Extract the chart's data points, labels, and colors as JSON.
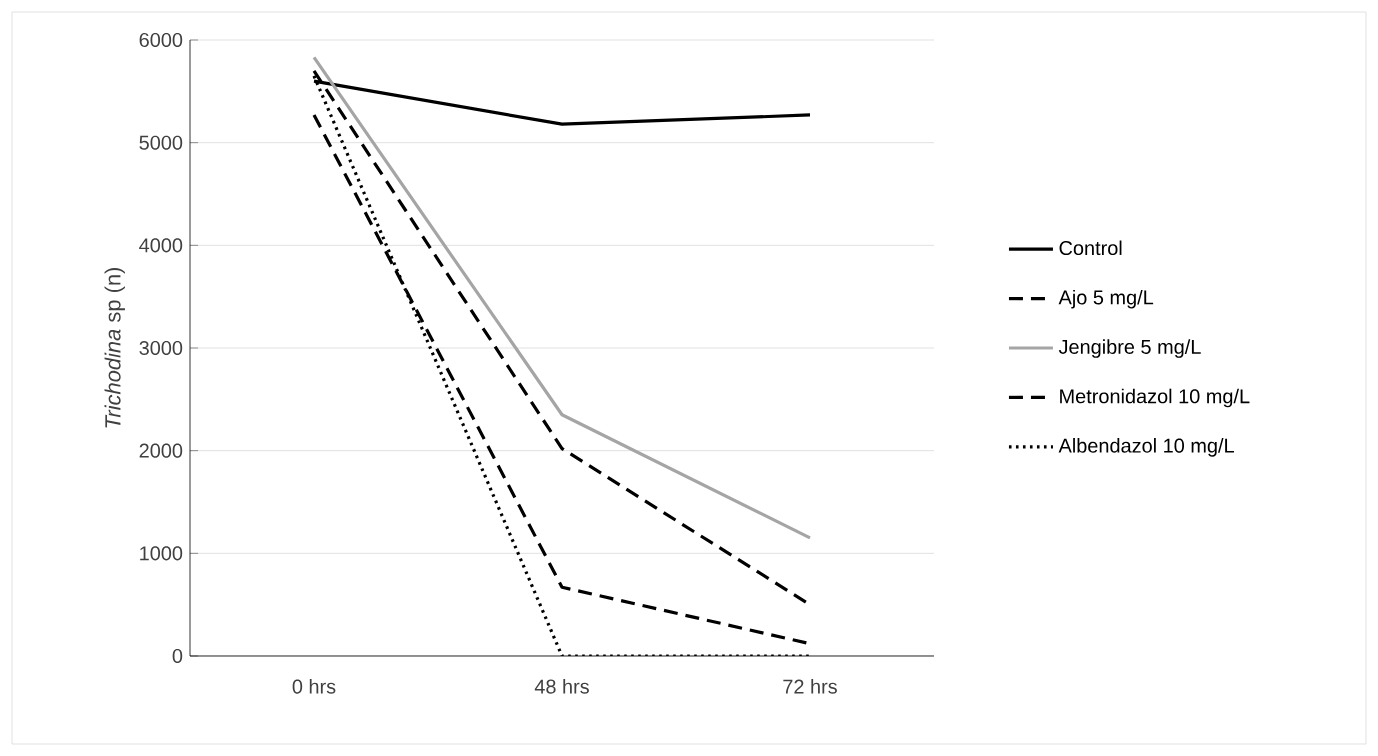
{
  "chart_data": {
    "type": "line",
    "ylabel": "*Trichodina* sp (n)",
    "categories": [
      "0 hrs",
      "48 hrs",
      "72 hrs"
    ],
    "ylim": [
      0,
      6000
    ],
    "yticks": [
      0,
      1000,
      2000,
      3000,
      4000,
      5000,
      6000
    ],
    "grid": "y",
    "legend": "right",
    "marker": "none",
    "series": [
      {
        "name": "Control",
        "color": "#000000",
        "line_style": "solid",
        "values": [
          5600,
          5180,
          5270
        ]
      },
      {
        "name": "Ajo 5 mg/L",
        "color": "#000000",
        "line_style": "dashed",
        "values": [
          5700,
          2020,
          500
        ]
      },
      {
        "name": "Jengibre 5 mg/L",
        "color": "#a5a5a5",
        "line_style": "solid",
        "values": [
          5830,
          2350,
          1150
        ]
      },
      {
        "name": "Metronidazol 10 mg/L",
        "color": "#000000",
        "line_style": "dashed",
        "values": [
          5270,
          670,
          120
        ]
      },
      {
        "name": "Albendazol 10 mg/L",
        "color": "#000000",
        "line_style": "dotted",
        "values": [
          5650,
          0,
          0
        ]
      }
    ]
  }
}
